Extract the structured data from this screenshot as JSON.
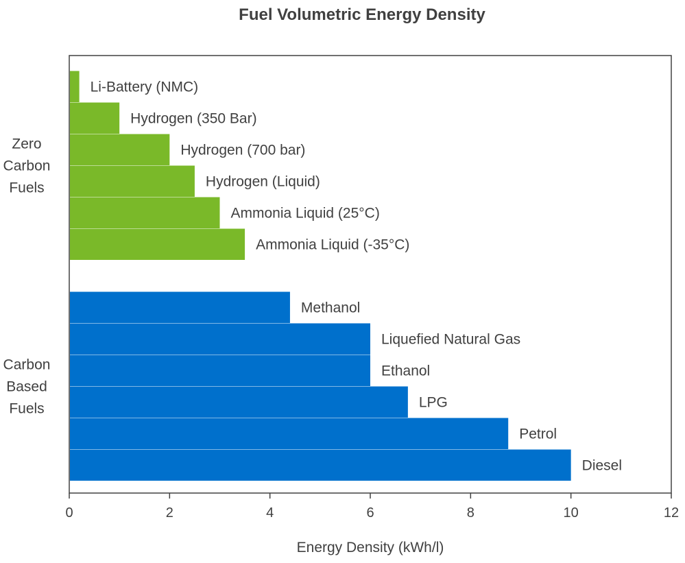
{
  "chart_data": {
    "type": "bar",
    "orientation": "horizontal",
    "title": "Fuel Volumetric Energy Density",
    "xlabel": "Energy Density (kWh/l)",
    "ylabel": "",
    "xlim": [
      0,
      12
    ],
    "xticks": [
      0,
      2,
      4,
      6,
      8,
      10,
      12
    ],
    "grid": false,
    "groups": [
      {
        "name": "Zero Carbon Fuels",
        "label_lines": [
          "Zero",
          "Carbon",
          "Fuels"
        ],
        "color": "#7ab929",
        "categories": [
          "Li-Battery (NMC)",
          "Hydrogen (350 Bar)",
          "Hydrogen (700 bar)",
          "Hydrogen (Liquid)",
          "Ammonia Liquid (25°C)",
          "Ammonia Liquid (-35°C)"
        ],
        "values": [
          0.2,
          1.0,
          2.0,
          2.5,
          3.0,
          3.5
        ]
      },
      {
        "name": "Carbon Based Fuels",
        "label_lines": [
          "Carbon",
          "Based",
          "Fuels"
        ],
        "color": "#0070cc",
        "categories": [
          "Methanol",
          "Liquefied Natural Gas",
          "Ethanol",
          "LPG",
          "Petrol",
          "Diesel"
        ],
        "values": [
          4.4,
          6.0,
          6.0,
          6.75,
          8.75,
          10.0
        ]
      }
    ]
  }
}
